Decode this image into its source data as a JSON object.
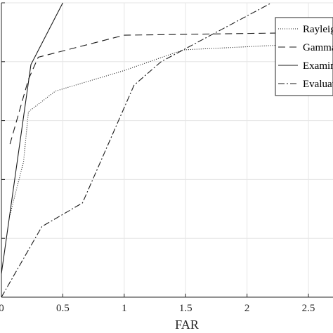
{
  "chart_data": {
    "type": "line",
    "xlabel": "FAR",
    "ylabel": "",
    "xlim": [
      0,
      2.7
    ],
    "ylim": [
      0,
      1
    ],
    "grid": true,
    "legend_position": "top-right",
    "x_ticks": [
      0,
      0.5,
      1,
      1.5,
      2,
      2.5
    ],
    "x_tick_labels": [
      "0",
      "0.5",
      "1",
      "1.5",
      "2",
      "2.5"
    ],
    "y_ticks": [
      0.2,
      0.4,
      0.6,
      0.8,
      1.0
    ],
    "series": [
      {
        "name": "Rayleigh",
        "dash": "1,2",
        "x": [
          0.07,
          0.18,
          0.22,
          0.44,
          1.0,
          1.48,
          2.2,
          2.7
        ],
        "y": [
          0.28,
          0.46,
          0.63,
          0.7,
          0.77,
          0.84,
          0.855,
          0.865
        ]
      },
      {
        "name": "Gamma",
        "dash": "10,6",
        "x": [
          0.07,
          0.22,
          0.3,
          1.0,
          2.7
        ],
        "y": [
          0.52,
          0.74,
          0.815,
          0.89,
          0.9
        ]
      },
      {
        "name": "Examination",
        "dash": "",
        "x": [
          0.0,
          0.24,
          0.5
        ],
        "y": [
          0.08,
          0.79,
          1.0
        ]
      },
      {
        "name": "Evaluation",
        "dash": "9,3,2,3",
        "x": [
          0.0,
          0.33,
          0.66,
          1.08,
          1.3,
          2.2
        ],
        "y": [
          0.0,
          0.24,
          0.32,
          0.72,
          0.8,
          1.0
        ]
      }
    ]
  }
}
